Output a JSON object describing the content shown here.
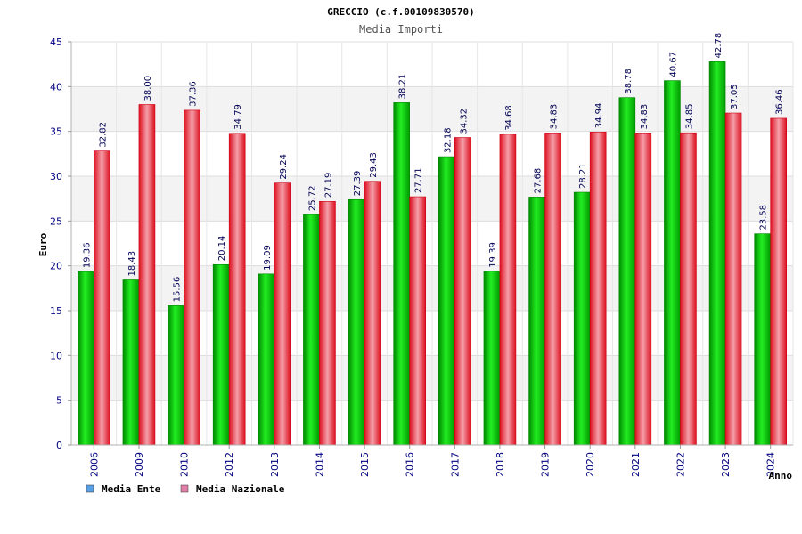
{
  "chart_data": {
    "type": "bar",
    "title": "GRECCIO (c.f.00109830570)",
    "subtitle": "Media Importi",
    "xlabel": "Anno",
    "ylabel": "Euro",
    "ylim": [
      0,
      45
    ],
    "yticks": [
      0,
      5,
      10,
      15,
      20,
      25,
      30,
      35,
      40,
      45
    ],
    "grid": true,
    "legend_position": "bottom-left",
    "categories": [
      "2006",
      "2009",
      "2010",
      "2012",
      "2013",
      "2014",
      "2015",
      "2016",
      "2017",
      "2018",
      "2019",
      "2020",
      "2021",
      "2022",
      "2023",
      "2024"
    ],
    "series": [
      {
        "name": "Media Ente",
        "color": "#00cc00",
        "values": [
          19.36,
          18.43,
          15.56,
          20.14,
          19.09,
          25.72,
          27.39,
          38.21,
          32.18,
          19.39,
          27.68,
          28.21,
          38.78,
          40.67,
          42.78,
          23.58
        ],
        "labels": [
          "19.36",
          "18.43",
          "15.56",
          "20.14",
          "19.09",
          "25.72",
          "27.39",
          "38.21",
          "32.18",
          "19.39",
          "27.68",
          "28.21",
          "38.78",
          "40.67",
          "42.78",
          "23.58"
        ]
      },
      {
        "name": "Media Nazionale",
        "color": "#ee1c2c",
        "values": [
          32.82,
          38.0,
          37.36,
          34.79,
          29.24,
          27.19,
          29.43,
          27.71,
          34.32,
          34.68,
          34.83,
          34.94,
          34.83,
          34.85,
          37.05,
          36.46
        ],
        "labels": [
          "32.82",
          "38.00",
          "37.36",
          "34.79",
          "29.24",
          "27.19",
          "29.43",
          "27.71",
          "34.32",
          "34.68",
          "34.83",
          "34.94",
          "34.83",
          "34.85",
          "37.05",
          "36.46"
        ]
      }
    ],
    "legend": [
      {
        "label": "Media Ente",
        "swatch_color": "#5aa0e6"
      },
      {
        "label": "Media Nazionale",
        "swatch_color": "#e080a8"
      }
    ]
  }
}
